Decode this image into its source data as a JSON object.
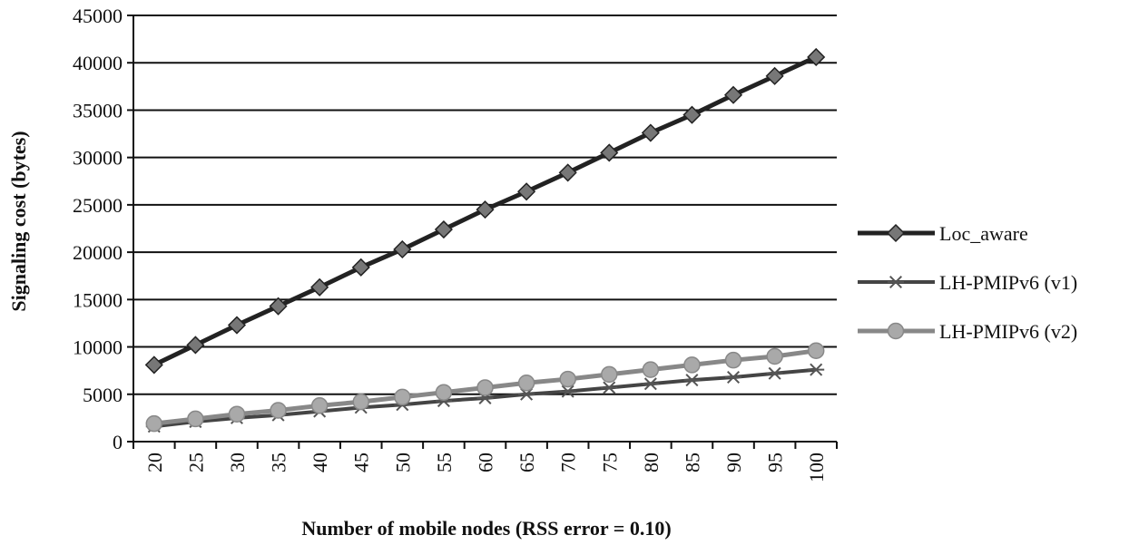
{
  "chart_data": {
    "type": "line",
    "title": "",
    "xlabel": "Number of mobile nodes (RSS error = 0.10)",
    "ylabel": "Signaling cost (bytes)",
    "categories": [
      "20",
      "25",
      "30",
      "35",
      "40",
      "45",
      "50",
      "55",
      "60",
      "65",
      "70",
      "75",
      "80",
      "85",
      "90",
      "95",
      "100"
    ],
    "ylim": [
      0,
      45000
    ],
    "yticks": [
      0,
      5000,
      10000,
      15000,
      20000,
      25000,
      30000,
      35000,
      40000,
      45000
    ],
    "grid": "horizontal",
    "legend_position": "right",
    "series": [
      {
        "name": "Loc_aware",
        "marker": "diamond",
        "color": "#222222",
        "values": [
          8100,
          10200,
          12300,
          14300,
          16300,
          18400,
          20300,
          22400,
          24500,
          26400,
          28400,
          30500,
          32600,
          34500,
          36600,
          38600,
          40600
        ]
      },
      {
        "name": "LH-PMIPv6 (v1)",
        "marker": "asterisk",
        "color": "#444444",
        "values": [
          1600,
          2100,
          2500,
          2800,
          3200,
          3600,
          3900,
          4300,
          4600,
          5000,
          5300,
          5700,
          6100,
          6500,
          6800,
          7200,
          7600
        ]
      },
      {
        "name": "LH-PMIPv6 (v2)",
        "marker": "circle",
        "color": "#888888",
        "values": [
          1900,
          2400,
          2900,
          3300,
          3800,
          4200,
          4700,
          5200,
          5700,
          6200,
          6600,
          7100,
          7600,
          8100,
          8600,
          9000,
          9600
        ]
      }
    ]
  }
}
